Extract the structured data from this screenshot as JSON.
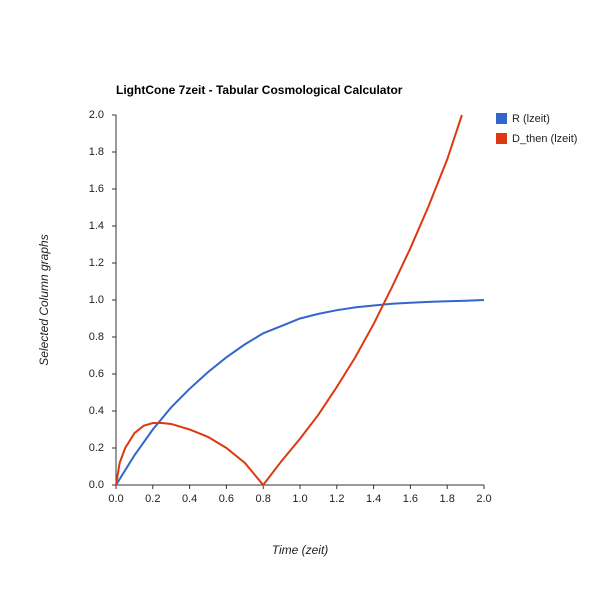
{
  "chart_data": {
    "type": "line",
    "title": "LightCone 7zeit - Tabular Cosmological Calculator",
    "x_label": "Time (zeit)",
    "y_label": "Selected Column graphs",
    "xlim": [
      0,
      2
    ],
    "ylim": [
      0,
      2
    ],
    "xticks": [
      {
        "value": 0,
        "label": "0.0"
      },
      0.2,
      0.4,
      0.6,
      0.8,
      {
        "value": 1,
        "label": "1.0"
      },
      1.2,
      1.4,
      1.6,
      1.8,
      {
        "value": 2,
        "label": "2.0"
      }
    ],
    "yticks": [
      {
        "value": 0,
        "label": "0.0"
      },
      0.2,
      0.4,
      0.6,
      0.8,
      {
        "value": 1,
        "label": "1.0"
      },
      1.2,
      1.4,
      1.6,
      1.8,
      {
        "value": 2,
        "label": "2.0"
      }
    ],
    "grid": false,
    "legend": "right",
    "series": [
      {
        "name": "R (lzeit)",
        "color": "#3366cc",
        "x": [
          0,
          0.1,
          0.2,
          0.3,
          0.4,
          0.5,
          0.6,
          0.7,
          0.8,
          0.9,
          1.0,
          1.1,
          1.2,
          1.3,
          1.4,
          1.5,
          1.6,
          1.7,
          1.8,
          1.9,
          2.0
        ],
        "values": [
          0,
          0.16,
          0.3,
          0.42,
          0.52,
          0.61,
          0.69,
          0.76,
          0.82,
          0.86,
          0.9,
          0.925,
          0.945,
          0.96,
          0.97,
          0.98,
          0.985,
          0.99,
          0.993,
          0.996,
          1.0
        ]
      },
      {
        "name": "D_then (lzeit)",
        "color": "#dc3912",
        "x": [
          0,
          0.02,
          0.05,
          0.1,
          0.15,
          0.2,
          0.25,
          0.3,
          0.4,
          0.5,
          0.6,
          0.7,
          0.8,
          0.9,
          1.0,
          1.1,
          1.2,
          1.3,
          1.4,
          1.5,
          1.6,
          1.7,
          1.8,
          1.88
        ],
        "values": [
          0,
          0.12,
          0.2,
          0.28,
          0.32,
          0.335,
          0.335,
          0.33,
          0.3,
          0.26,
          0.2,
          0.12,
          0,
          0.13,
          0.25,
          0.38,
          0.53,
          0.69,
          0.87,
          1.07,
          1.28,
          1.51,
          1.76,
          2.0
        ]
      }
    ]
  }
}
